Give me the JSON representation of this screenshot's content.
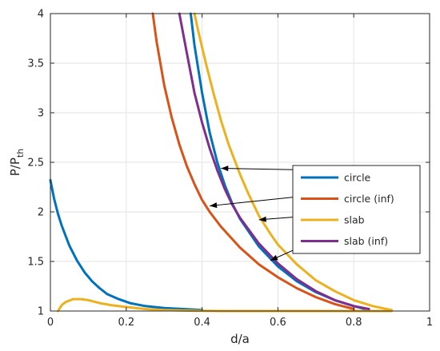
{
  "chart_data": {
    "type": "line",
    "xlabel": "d/a",
    "ylabel": "P/P",
    "ylabel_sub": "th",
    "xlim": [
      0,
      1
    ],
    "ylim": [
      1,
      4
    ],
    "xticks": [
      0,
      0.2,
      0.4,
      0.6,
      0.8,
      1
    ],
    "xtick_labels": [
      "0",
      "0.2",
      "0.4",
      "0.6",
      "0.8",
      "1"
    ],
    "yticks": [
      1,
      1.5,
      2,
      2.5,
      3,
      3.5,
      4
    ],
    "ytick_labels": [
      "1",
      "1.5",
      "2",
      "2.5",
      "3",
      "3.5",
      "4"
    ],
    "grid": true,
    "legend_position": "right",
    "series": [
      {
        "name": "circle",
        "color": "#0072BD",
        "branches": [
          [
            [
              0.0,
              2.32
            ],
            [
              0.01,
              2.13
            ],
            [
              0.02,
              1.98
            ],
            [
              0.03,
              1.86
            ],
            [
              0.05,
              1.66
            ],
            [
              0.07,
              1.51
            ],
            [
              0.09,
              1.39
            ],
            [
              0.11,
              1.3
            ],
            [
              0.13,
              1.23
            ],
            [
              0.15,
              1.17
            ],
            [
              0.18,
              1.12
            ],
            [
              0.21,
              1.08
            ],
            [
              0.25,
              1.05
            ],
            [
              0.3,
              1.03
            ],
            [
              0.35,
              1.02
            ],
            [
              0.4,
              1.01
            ]
          ],
          [
            [
              0.37,
              4.0
            ],
            [
              0.38,
              3.68
            ],
            [
              0.4,
              3.2
            ],
            [
              0.42,
              2.8
            ],
            [
              0.44,
              2.5
            ],
            [
              0.46,
              2.27
            ],
            [
              0.48,
              2.08
            ],
            [
              0.5,
              1.93
            ],
            [
              0.55,
              1.65
            ],
            [
              0.6,
              1.45
            ],
            [
              0.65,
              1.3
            ],
            [
              0.7,
              1.19
            ],
            [
              0.75,
              1.11
            ],
            [
              0.8,
              1.05
            ],
            [
              0.83,
              1.02
            ]
          ]
        ]
      },
      {
        "name": "circle (inf)",
        "color": "#D95319",
        "branches": [
          [
            [
              0.27,
              4.0
            ],
            [
              0.28,
              3.72
            ],
            [
              0.3,
              3.28
            ],
            [
              0.32,
              2.95
            ],
            [
              0.34,
              2.68
            ],
            [
              0.36,
              2.46
            ],
            [
              0.38,
              2.28
            ],
            [
              0.4,
              2.12
            ],
            [
              0.42,
              2.0
            ],
            [
              0.45,
              1.85
            ],
            [
              0.5,
              1.64
            ],
            [
              0.55,
              1.47
            ],
            [
              0.6,
              1.34
            ],
            [
              0.65,
              1.23
            ],
            [
              0.7,
              1.14
            ],
            [
              0.75,
              1.07
            ],
            [
              0.8,
              1.02
            ]
          ]
        ]
      },
      {
        "name": "slab",
        "color": "#EDB120",
        "branches": [
          [
            [
              0.02,
              1.0
            ],
            [
              0.03,
              1.06
            ],
            [
              0.04,
              1.09
            ],
            [
              0.06,
              1.12
            ],
            [
              0.08,
              1.12
            ],
            [
              0.1,
              1.11
            ],
            [
              0.13,
              1.08
            ],
            [
              0.16,
              1.06
            ],
            [
              0.2,
              1.04
            ],
            [
              0.25,
              1.02
            ],
            [
              0.3,
              1.01
            ],
            [
              0.35,
              1.005
            ],
            [
              0.45,
              1.0
            ],
            [
              0.6,
              1.0
            ],
            [
              0.8,
              1.0
            ],
            [
              0.9,
              1.0
            ]
          ],
          [
            [
              0.38,
              4.0
            ],
            [
              0.39,
              3.82
            ],
            [
              0.41,
              3.5
            ],
            [
              0.43,
              3.2
            ],
            [
              0.45,
              2.92
            ],
            [
              0.47,
              2.68
            ],
            [
              0.5,
              2.38
            ],
            [
              0.52,
              2.2
            ],
            [
              0.55,
              1.96
            ],
            [
              0.58,
              1.78
            ],
            [
              0.6,
              1.67
            ],
            [
              0.65,
              1.47
            ],
            [
              0.7,
              1.31
            ],
            [
              0.75,
              1.2
            ],
            [
              0.8,
              1.11
            ],
            [
              0.85,
              1.05
            ],
            [
              0.9,
              1.01
            ]
          ]
        ]
      },
      {
        "name": "slab (inf)",
        "color": "#7E2F8E",
        "branches": [
          [
            [
              0.34,
              4.0
            ],
            [
              0.36,
              3.6
            ],
            [
              0.38,
              3.2
            ],
            [
              0.4,
              2.9
            ],
            [
              0.42,
              2.64
            ],
            [
              0.44,
              2.42
            ],
            [
              0.46,
              2.23
            ],
            [
              0.48,
              2.07
            ],
            [
              0.5,
              1.94
            ],
            [
              0.55,
              1.68
            ],
            [
              0.6,
              1.48
            ],
            [
              0.65,
              1.32
            ],
            [
              0.7,
              1.2
            ],
            [
              0.75,
              1.11
            ],
            [
              0.8,
              1.05
            ],
            [
              0.84,
              1.02
            ]
          ]
        ]
      }
    ],
    "annotations": [
      {
        "from": [
          0.72,
          2.42
        ],
        "to": [
          0.45,
          2.44
        ]
      },
      {
        "from": [
          0.72,
          2.18
        ],
        "to": [
          0.42,
          2.06
        ]
      },
      {
        "from": [
          0.72,
          1.97
        ],
        "to": [
          0.55,
          1.92
        ]
      },
      {
        "from": [
          0.72,
          1.75
        ],
        "to": [
          0.58,
          1.51
        ]
      }
    ]
  }
}
